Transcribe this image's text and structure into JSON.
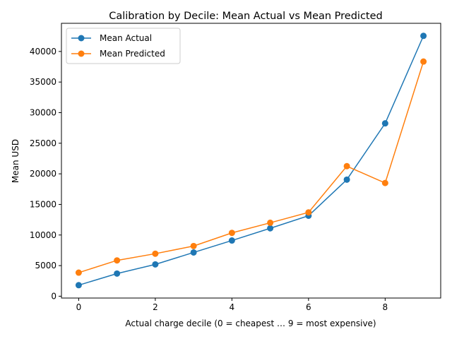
{
  "chart_data": {
    "type": "line",
    "title": "Calibration by Decile: Mean Actual vs Mean Predicted",
    "xlabel": "Actual charge decile (0 = cheapest … 9 = most expensive)",
    "ylabel": "Mean USD",
    "x": [
      0,
      1,
      2,
      3,
      4,
      5,
      6,
      7,
      8,
      9
    ],
    "xlim": [
      -0.45,
      9.45
    ],
    "ylim": [
      -300,
      44600
    ],
    "xticks": [
      0,
      2,
      4,
      6,
      8
    ],
    "yticks": [
      0,
      5000,
      10000,
      15000,
      20000,
      25000,
      30000,
      35000,
      40000
    ],
    "grid": false,
    "legend_position": "top-left",
    "series": [
      {
        "name": "Mean Actual",
        "color": "#1f77b4",
        "marker": "circle",
        "values": [
          1800,
          3700,
          5200,
          7150,
          9100,
          11100,
          13150,
          19050,
          28250,
          42550
        ]
      },
      {
        "name": "Mean Predicted",
        "color": "#ff7f0e",
        "marker": "circle",
        "values": [
          3850,
          5850,
          6950,
          8200,
          10350,
          12000,
          13700,
          21250,
          18500,
          38350
        ]
      }
    ]
  }
}
